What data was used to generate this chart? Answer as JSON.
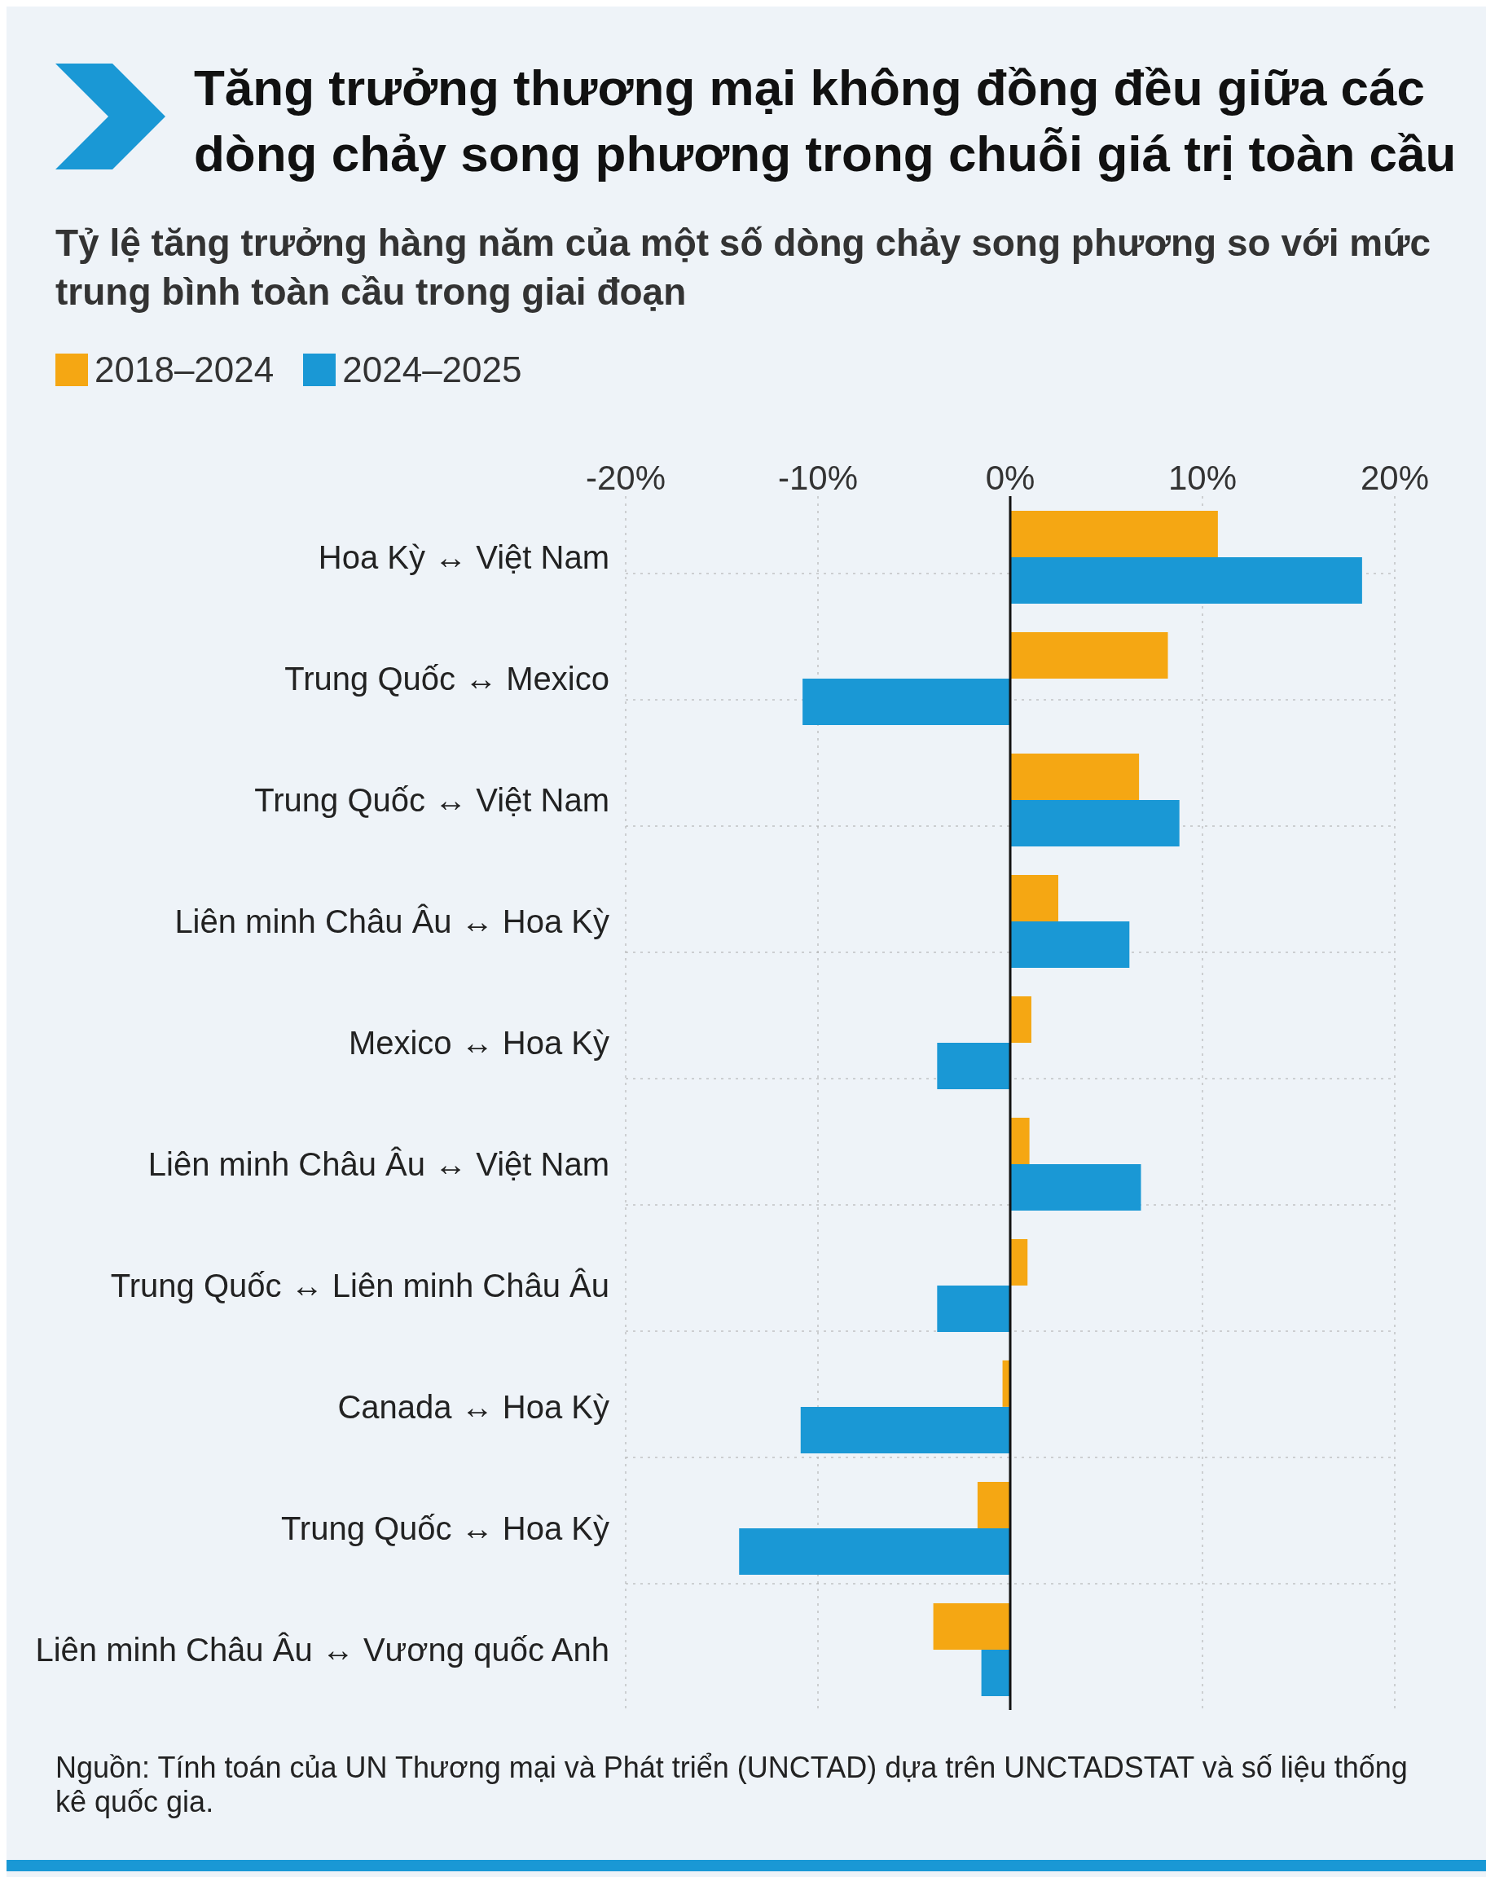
{
  "chart_data": {
    "type": "bar",
    "orientation": "horizontal",
    "title": "Tăng trưởng thương mại không đồng đều giữa các dòng chảy song phương trong chuỗi giá trị toàn cầu",
    "subtitle": "Tỷ lệ tăng trưởng hàng năm của một số dòng chảy song phương so với mức trung bình toàn cầu trong giai đoạn",
    "categories": [
      "Hoa Kỳ ↔ Việt Nam",
      "Trung Quốc ↔ Mexico",
      "Trung Quốc ↔ Việt Nam",
      "Liên minh Châu Âu ↔ Hoa Kỳ",
      "Mexico ↔ Hoa Kỳ",
      "Liên minh Châu Âu ↔ Việt Nam",
      "Trung Quốc ↔ Liên minh Châu Âu",
      "Canada ↔ Hoa Kỳ",
      "Trung Quốc ↔ Hoa Kỳ",
      "Liên minh Châu Âu ↔ Vương quốc Anh"
    ],
    "series": [
      {
        "name": "2018–2024",
        "color": "#f5a713",
        "values": [
          10.8,
          8.2,
          6.7,
          2.5,
          1.1,
          1.0,
          0.9,
          -0.4,
          -1.7,
          -4.0
        ]
      },
      {
        "name": "2024–2025",
        "color": "#1a98d5",
        "values": [
          18.3,
          -10.8,
          8.8,
          6.2,
          -3.8,
          6.8,
          -3.8,
          -10.9,
          -14.1,
          -1.5
        ]
      }
    ],
    "xlim": [
      -20,
      20
    ],
    "xticks": [
      {
        "value": -20,
        "label": "-20%"
      },
      {
        "value": -10,
        "label": "-10%"
      },
      {
        "value": 0,
        "label": "0%"
      },
      {
        "value": 10,
        "label": "10%"
      },
      {
        "value": 20,
        "label": "20%"
      }
    ],
    "ref_lines": [
      {
        "axis": "x",
        "value": 0,
        "color": "#111111"
      }
    ],
    "grid": true,
    "legend": "top left",
    "annotations": [
      "Nguồn: Tính toán của UN Thương mại và Phát triển (UNCTAD) dựa trên UNCTADSTAT và số liệu thống kê quốc gia."
    ]
  }
}
